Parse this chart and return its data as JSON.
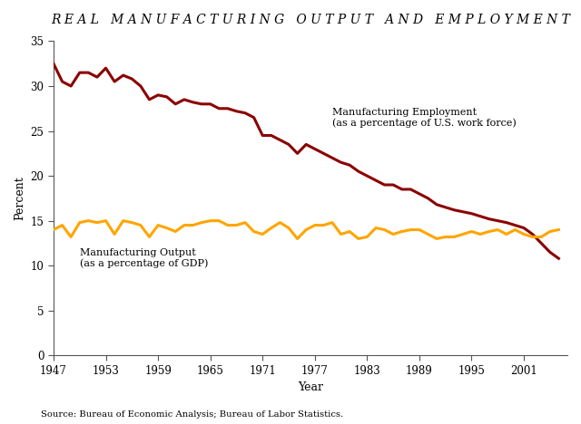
{
  "title": "R E A L   M A N U F A C T U R I N G   O U T P U T   A N D   E M P L O Y M E N T",
  "xlabel": "Year",
  "ylabel": "Percent",
  "source": "Source: Bureau of Economic Analysis; Bureau of Labor Statistics.",
  "xlim": [
    1947,
    2006
  ],
  "ylim": [
    0,
    35
  ],
  "yticks": [
    0,
    5,
    10,
    15,
    20,
    25,
    30,
    35
  ],
  "xticks": [
    1947,
    1953,
    1959,
    1965,
    1971,
    1977,
    1983,
    1989,
    1995,
    2001
  ],
  "employment_color": "#8B0000",
  "output_color": "#FFA500",
  "line_width": 2.2,
  "employment_label1": "Manufacturing Employment",
  "employment_label2": "(as a percentage of U.S. work force)",
  "output_label1": "Manufacturing Output",
  "output_label2": "(as a percentage of GDP)",
  "employment_years": [
    1947,
    1948,
    1949,
    1950,
    1951,
    1952,
    1953,
    1954,
    1955,
    1956,
    1957,
    1958,
    1959,
    1960,
    1961,
    1962,
    1963,
    1964,
    1965,
    1966,
    1967,
    1968,
    1969,
    1970,
    1971,
    1972,
    1973,
    1974,
    1975,
    1976,
    1977,
    1978,
    1979,
    1980,
    1981,
    1982,
    1983,
    1984,
    1985,
    1986,
    1987,
    1988,
    1989,
    1990,
    1991,
    1992,
    1993,
    1994,
    1995,
    1996,
    1997,
    1998,
    1999,
    2000,
    2001,
    2002,
    2003,
    2004,
    2005
  ],
  "employment_values": [
    32.5,
    30.5,
    30.0,
    31.5,
    31.5,
    31.0,
    32.0,
    30.5,
    31.2,
    30.8,
    30.0,
    28.5,
    29.0,
    28.8,
    28.0,
    28.5,
    28.2,
    28.0,
    28.0,
    27.5,
    27.5,
    27.2,
    27.0,
    26.5,
    24.5,
    24.5,
    24.0,
    23.5,
    22.5,
    23.5,
    23.0,
    22.5,
    22.0,
    21.5,
    21.2,
    20.5,
    20.0,
    19.5,
    19.0,
    19.0,
    18.5,
    18.5,
    18.0,
    17.5,
    16.8,
    16.5,
    16.2,
    16.0,
    15.8,
    15.5,
    15.2,
    15.0,
    14.8,
    14.5,
    14.2,
    13.5,
    12.5,
    11.5,
    10.8
  ],
  "output_years": [
    1947,
    1948,
    1949,
    1950,
    1951,
    1952,
    1953,
    1954,
    1955,
    1956,
    1957,
    1958,
    1959,
    1960,
    1961,
    1962,
    1963,
    1964,
    1965,
    1966,
    1967,
    1968,
    1969,
    1970,
    1971,
    1972,
    1973,
    1974,
    1975,
    1976,
    1977,
    1978,
    1979,
    1980,
    1981,
    1982,
    1983,
    1984,
    1985,
    1986,
    1987,
    1988,
    1989,
    1990,
    1991,
    1992,
    1993,
    1994,
    1995,
    1996,
    1997,
    1998,
    1999,
    2000,
    2001,
    2002,
    2003,
    2004,
    2005
  ],
  "output_values": [
    14.0,
    14.5,
    13.2,
    14.8,
    15.0,
    14.8,
    15.0,
    13.5,
    15.0,
    14.8,
    14.5,
    13.2,
    14.5,
    14.2,
    13.8,
    14.5,
    14.5,
    14.8,
    15.0,
    15.0,
    14.5,
    14.5,
    14.8,
    13.8,
    13.5,
    14.2,
    14.8,
    14.2,
    13.0,
    14.0,
    14.5,
    14.5,
    14.8,
    13.5,
    13.8,
    13.0,
    13.2,
    14.2,
    14.0,
    13.5,
    13.8,
    14.0,
    14.0,
    13.5,
    13.0,
    13.2,
    13.2,
    13.5,
    13.8,
    13.5,
    13.8,
    14.0,
    13.5,
    14.0,
    13.5,
    13.2,
    13.2,
    13.8,
    14.0
  ]
}
